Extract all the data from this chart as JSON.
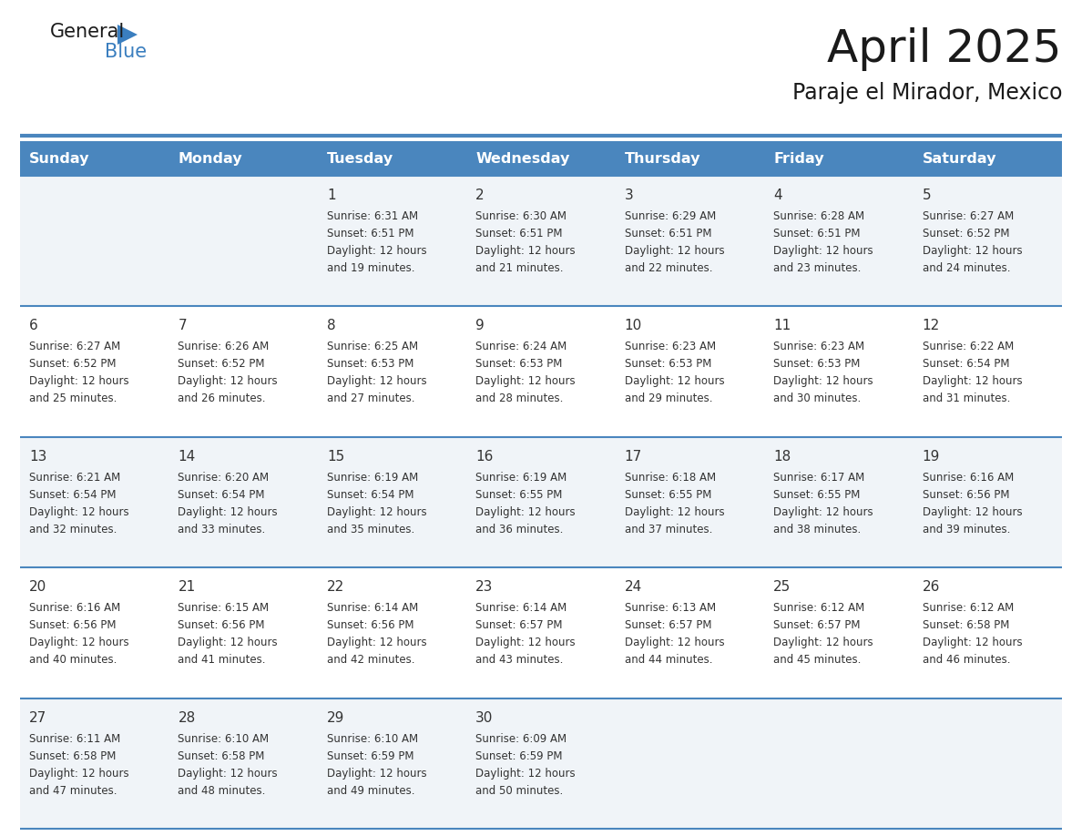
{
  "title": "April 2025",
  "subtitle": "Paraje el Mirador, Mexico",
  "days_of_week": [
    "Sunday",
    "Monday",
    "Tuesday",
    "Wednesday",
    "Thursday",
    "Friday",
    "Saturday"
  ],
  "header_bg": "#4a86be",
  "header_text_color": "#ffffff",
  "row_bg_even": "#f0f4f8",
  "row_bg_odd": "#ffffff",
  "separator_color": "#4a86be",
  "text_color": "#333333",
  "logo_text_color": "#1a1a1a",
  "logo_blue_color": "#3a7ebf",
  "calendar_data": [
    [
      {
        "day": "",
        "sunrise": "",
        "sunset": "",
        "daylight_min": null
      },
      {
        "day": "",
        "sunrise": "",
        "sunset": "",
        "daylight_min": null
      },
      {
        "day": "1",
        "sunrise": "6:31 AM",
        "sunset": "6:51 PM",
        "daylight_min": 19
      },
      {
        "day": "2",
        "sunrise": "6:30 AM",
        "sunset": "6:51 PM",
        "daylight_min": 21
      },
      {
        "day": "3",
        "sunrise": "6:29 AM",
        "sunset": "6:51 PM",
        "daylight_min": 22
      },
      {
        "day": "4",
        "sunrise": "6:28 AM",
        "sunset": "6:51 PM",
        "daylight_min": 23
      },
      {
        "day": "5",
        "sunrise": "6:27 AM",
        "sunset": "6:52 PM",
        "daylight_min": 24
      }
    ],
    [
      {
        "day": "6",
        "sunrise": "6:27 AM",
        "sunset": "6:52 PM",
        "daylight_min": 25
      },
      {
        "day": "7",
        "sunrise": "6:26 AM",
        "sunset": "6:52 PM",
        "daylight_min": 26
      },
      {
        "day": "8",
        "sunrise": "6:25 AM",
        "sunset": "6:53 PM",
        "daylight_min": 27
      },
      {
        "day": "9",
        "sunrise": "6:24 AM",
        "sunset": "6:53 PM",
        "daylight_min": 28
      },
      {
        "day": "10",
        "sunrise": "6:23 AM",
        "sunset": "6:53 PM",
        "daylight_min": 29
      },
      {
        "day": "11",
        "sunrise": "6:23 AM",
        "sunset": "6:53 PM",
        "daylight_min": 30
      },
      {
        "day": "12",
        "sunrise": "6:22 AM",
        "sunset": "6:54 PM",
        "daylight_min": 31
      }
    ],
    [
      {
        "day": "13",
        "sunrise": "6:21 AM",
        "sunset": "6:54 PM",
        "daylight_min": 32
      },
      {
        "day": "14",
        "sunrise": "6:20 AM",
        "sunset": "6:54 PM",
        "daylight_min": 33
      },
      {
        "day": "15",
        "sunrise": "6:19 AM",
        "sunset": "6:54 PM",
        "daylight_min": 35
      },
      {
        "day": "16",
        "sunrise": "6:19 AM",
        "sunset": "6:55 PM",
        "daylight_min": 36
      },
      {
        "day": "17",
        "sunrise": "6:18 AM",
        "sunset": "6:55 PM",
        "daylight_min": 37
      },
      {
        "day": "18",
        "sunrise": "6:17 AM",
        "sunset": "6:55 PM",
        "daylight_min": 38
      },
      {
        "day": "19",
        "sunrise": "6:16 AM",
        "sunset": "6:56 PM",
        "daylight_min": 39
      }
    ],
    [
      {
        "day": "20",
        "sunrise": "6:16 AM",
        "sunset": "6:56 PM",
        "daylight_min": 40
      },
      {
        "day": "21",
        "sunrise": "6:15 AM",
        "sunset": "6:56 PM",
        "daylight_min": 41
      },
      {
        "day": "22",
        "sunrise": "6:14 AM",
        "sunset": "6:56 PM",
        "daylight_min": 42
      },
      {
        "day": "23",
        "sunrise": "6:14 AM",
        "sunset": "6:57 PM",
        "daylight_min": 43
      },
      {
        "day": "24",
        "sunrise": "6:13 AM",
        "sunset": "6:57 PM",
        "daylight_min": 44
      },
      {
        "day": "25",
        "sunrise": "6:12 AM",
        "sunset": "6:57 PM",
        "daylight_min": 45
      },
      {
        "day": "26",
        "sunrise": "6:12 AM",
        "sunset": "6:58 PM",
        "daylight_min": 46
      }
    ],
    [
      {
        "day": "27",
        "sunrise": "6:11 AM",
        "sunset": "6:58 PM",
        "daylight_min": 47
      },
      {
        "day": "28",
        "sunrise": "6:10 AM",
        "sunset": "6:58 PM",
        "daylight_min": 48
      },
      {
        "day": "29",
        "sunrise": "6:10 AM",
        "sunset": "6:59 PM",
        "daylight_min": 49
      },
      {
        "day": "30",
        "sunrise": "6:09 AM",
        "sunset": "6:59 PM",
        "daylight_min": 50
      },
      {
        "day": "",
        "sunrise": "",
        "sunset": "",
        "daylight_min": null
      },
      {
        "day": "",
        "sunrise": "",
        "sunset": "",
        "daylight_min": null
      },
      {
        "day": "",
        "sunrise": "",
        "sunset": "",
        "daylight_min": null
      }
    ]
  ]
}
